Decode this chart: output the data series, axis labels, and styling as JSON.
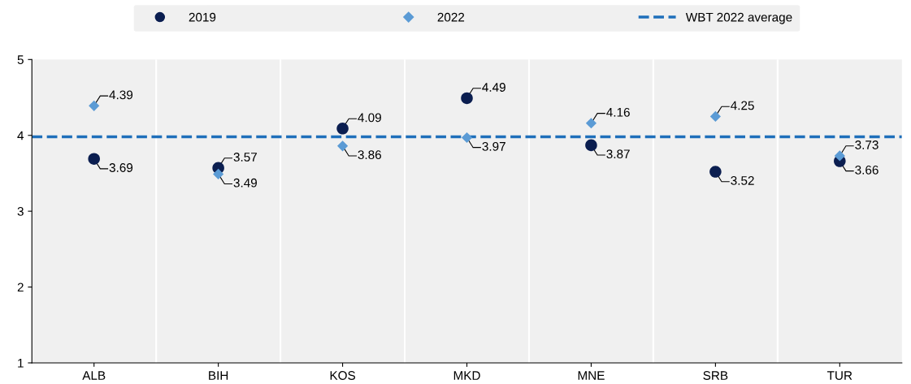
{
  "chart_data": {
    "type": "scatter",
    "categories": [
      "ALB",
      "BIH",
      "KOS",
      "MKD",
      "MNE",
      "SRB",
      "TUR"
    ],
    "series": [
      {
        "name": "2019",
        "color": "#0b1e50",
        "marker": "circle",
        "values": [
          3.69,
          3.57,
          4.09,
          4.49,
          3.87,
          3.52,
          3.66
        ]
      },
      {
        "name": "2022",
        "color": "#5b9bd5",
        "marker": "diamond",
        "values": [
          4.39,
          3.49,
          3.86,
          3.97,
          4.16,
          4.25,
          3.73
        ]
      }
    ],
    "ref_lines": [
      {
        "axis": "y",
        "value": 3.98,
        "label": "WBT 2022 average",
        "color": "#1f6fba",
        "line_style": "dashed"
      }
    ],
    "ylim": [
      1,
      5
    ],
    "yticks": [
      1,
      2,
      3,
      4,
      5
    ],
    "data_labels": true,
    "grid": "x",
    "legend": "top"
  }
}
